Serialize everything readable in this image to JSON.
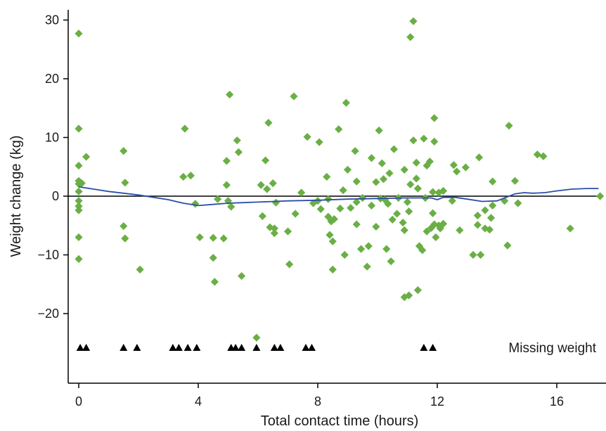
{
  "chart_data": {
    "type": "scatter",
    "title": "",
    "xlabel": "Total contact time (hours)",
    "ylabel": "Weight change (kg)",
    "xlim": [
      -0.3,
      17.6
    ],
    "ylim": [
      -32,
      32
    ],
    "x_ticks": [
      0,
      4,
      8,
      12,
      16
    ],
    "y_ticks": [
      -20,
      -10,
      0,
      10,
      20,
      30
    ],
    "grid": false,
    "reference_line_y": 0,
    "colors": {
      "points": "#6aaf45",
      "smooth": "#2a4fa8",
      "missing": "#000000",
      "axis": "#000000"
    },
    "annotation": "Missing weight",
    "series": [
      {
        "marker": "diamond",
        "points": [
          [
            0,
            27.7
          ],
          [
            0,
            11.5
          ],
          [
            0,
            5.2
          ],
          [
            0,
            2.6
          ],
          [
            0,
            2.1
          ],
          [
            0,
            0.8
          ],
          [
            0,
            -0.8
          ],
          [
            0,
            -1.7
          ],
          [
            0,
            -2.4
          ],
          [
            0,
            -7.0
          ],
          [
            0,
            -10.7
          ],
          [
            0.1,
            2.2
          ],
          [
            0.25,
            6.7
          ],
          [
            1.5,
            7.7
          ],
          [
            1.55,
            2.3
          ],
          [
            1.5,
            -5.1
          ],
          [
            1.55,
            -7.2
          ],
          [
            2.05,
            -12.5
          ],
          [
            3.5,
            3.3
          ],
          [
            3.55,
            11.5
          ],
          [
            3.75,
            3.5
          ],
          [
            3.9,
            -1.3
          ],
          [
            4.05,
            -7.0
          ],
          [
            4.5,
            -7.1
          ],
          [
            4.5,
            -10.5
          ],
          [
            4.55,
            -14.6
          ],
          [
            4.65,
            -0.5
          ],
          [
            4.85,
            -7.2
          ],
          [
            4.95,
            6.0
          ],
          [
            4.95,
            1.9
          ],
          [
            5.0,
            -0.8
          ],
          [
            5.05,
            17.3
          ],
          [
            5.1,
            -1.8
          ],
          [
            5.3,
            9.5
          ],
          [
            5.35,
            7.5
          ],
          [
            5.45,
            -13.6
          ],
          [
            5.95,
            -24.1
          ],
          [
            6.1,
            1.9
          ],
          [
            6.15,
            -3.4
          ],
          [
            6.25,
            6.1
          ],
          [
            6.3,
            1.2
          ],
          [
            6.35,
            12.5
          ],
          [
            6.4,
            -5.3
          ],
          [
            6.5,
            2.2
          ],
          [
            6.55,
            -5.5
          ],
          [
            6.6,
            -1.1
          ],
          [
            6.55,
            -6.3
          ],
          [
            7.0,
            -6.0
          ],
          [
            7.05,
            -11.6
          ],
          [
            7.2,
            17.0
          ],
          [
            7.25,
            -3.0
          ],
          [
            7.45,
            0.6
          ],
          [
            7.65,
            10.1
          ],
          [
            7.85,
            -1.2
          ],
          [
            8.0,
            -0.8
          ],
          [
            8.05,
            9.2
          ],
          [
            8.1,
            -2.2
          ],
          [
            8.3,
            3.3
          ],
          [
            8.35,
            -0.5
          ],
          [
            8.35,
            -3.5
          ],
          [
            8.4,
            -6.6
          ],
          [
            8.45,
            -4.3
          ],
          [
            8.5,
            -7.7
          ],
          [
            8.5,
            -12.5
          ],
          [
            8.55,
            -3.9
          ],
          [
            8.7,
            11.4
          ],
          [
            8.75,
            -2.1
          ],
          [
            8.85,
            1.0
          ],
          [
            8.9,
            -10.0
          ],
          [
            8.95,
            15.9
          ],
          [
            9.0,
            4.5
          ],
          [
            9.1,
            -2.0
          ],
          [
            9.25,
            7.7
          ],
          [
            9.3,
            2.5
          ],
          [
            9.3,
            -1.0
          ],
          [
            9.3,
            -4.8
          ],
          [
            9.45,
            -9.0
          ],
          [
            9.5,
            -0.3
          ],
          [
            9.65,
            -12.0
          ],
          [
            9.7,
            -8.5
          ],
          [
            9.8,
            6.5
          ],
          [
            9.8,
            -1.6
          ],
          [
            9.95,
            2.4
          ],
          [
            9.95,
            -5.2
          ],
          [
            10.05,
            11.2
          ],
          [
            10.1,
            -0.4
          ],
          [
            10.15,
            5.6
          ],
          [
            10.2,
            2.9
          ],
          [
            10.25,
            -0.6
          ],
          [
            10.3,
            -9.0
          ],
          [
            10.35,
            -1.3
          ],
          [
            10.4,
            3.9
          ],
          [
            10.45,
            -11.1
          ],
          [
            10.5,
            -4.0
          ],
          [
            10.55,
            8.0
          ],
          [
            10.65,
            -3.0
          ],
          [
            10.7,
            -0.3
          ],
          [
            10.85,
            -4.5
          ],
          [
            10.9,
            -5.8
          ],
          [
            10.9,
            4.5
          ],
          [
            10.9,
            -17.2
          ],
          [
            11.0,
            -1.0
          ],
          [
            11.05,
            -2.6
          ],
          [
            11.05,
            -16.9
          ],
          [
            11.1,
            2.0
          ],
          [
            11.1,
            27.1
          ],
          [
            11.2,
            29.8
          ],
          [
            11.2,
            9.5
          ],
          [
            11.3,
            5.7
          ],
          [
            11.3,
            3.0
          ],
          [
            11.35,
            1.3
          ],
          [
            11.35,
            -16.0
          ],
          [
            11.4,
            -8.5
          ],
          [
            11.5,
            -9.2
          ],
          [
            11.55,
            9.8
          ],
          [
            11.6,
            -0.3
          ],
          [
            11.65,
            5.2
          ],
          [
            11.65,
            -6.0
          ],
          [
            11.75,
            5.9
          ],
          [
            11.8,
            -5.4
          ],
          [
            11.85,
            0.7
          ],
          [
            11.85,
            -2.9
          ],
          [
            11.9,
            13.3
          ],
          [
            11.9,
            9.3
          ],
          [
            11.9,
            -4.8
          ],
          [
            11.95,
            -7.0
          ],
          [
            12.05,
            0.6
          ],
          [
            12.05,
            -5.0
          ],
          [
            12.1,
            -5.5
          ],
          [
            12.2,
            -4.7
          ],
          [
            12.2,
            0.9
          ],
          [
            12.5,
            -0.8
          ],
          [
            12.55,
            5.3
          ],
          [
            12.65,
            4.2
          ],
          [
            12.75,
            -5.8
          ],
          [
            12.95,
            4.9
          ],
          [
            13.2,
            -10.0
          ],
          [
            13.35,
            -3.3
          ],
          [
            13.35,
            -4.9
          ],
          [
            13.4,
            6.6
          ],
          [
            13.45,
            -10.0
          ],
          [
            13.6,
            -2.4
          ],
          [
            13.6,
            -5.5
          ],
          [
            13.75,
            -5.7
          ],
          [
            13.8,
            -3.7
          ],
          [
            13.85,
            2.5
          ],
          [
            13.85,
            -1.6
          ],
          [
            14.25,
            -0.8
          ],
          [
            14.35,
            -8.4
          ],
          [
            14.4,
            12.0
          ],
          [
            14.6,
            2.6
          ],
          [
            14.7,
            -1.2
          ],
          [
            15.35,
            7.1
          ],
          [
            15.55,
            6.8
          ],
          [
            16.45,
            -5.5
          ],
          [
            17.45,
            0
          ]
        ]
      }
    ],
    "smoothed_curve": [
      [
        0,
        1.6
      ],
      [
        0.5,
        1.2
      ],
      [
        1,
        0.8
      ],
      [
        1.5,
        0.5
      ],
      [
        2,
        0.2
      ],
      [
        2.5,
        -0.2
      ],
      [
        3,
        -0.6
      ],
      [
        3.5,
        -1.2
      ],
      [
        4,
        -1.6
      ],
      [
        4.5,
        -1.4
      ],
      [
        5,
        -1.2
      ],
      [
        5.5,
        -1.1
      ],
      [
        6,
        -1.0
      ],
      [
        7,
        -0.8
      ],
      [
        8,
        -0.7
      ],
      [
        9,
        -0.5
      ],
      [
        10,
        -0.4
      ],
      [
        11,
        -0.3
      ],
      [
        11.8,
        -0.3
      ],
      [
        12,
        -0.6
      ],
      [
        12.2,
        -0.2
      ],
      [
        12.6,
        -0.2
      ],
      [
        13,
        -0.5
      ],
      [
        13.5,
        -0.9
      ],
      [
        14,
        -0.8
      ],
      [
        14.3,
        -0.2
      ],
      [
        14.6,
        0.4
      ],
      [
        14.9,
        0.6
      ],
      [
        15.2,
        0.5
      ],
      [
        15.6,
        0.6
      ],
      [
        16,
        0.9
      ],
      [
        16.5,
        1.2
      ],
      [
        17.0,
        1.3
      ],
      [
        17.4,
        1.3
      ]
    ],
    "missing_weight_x": [
      0.05,
      0.25,
      1.5,
      1.95,
      3.15,
      3.35,
      3.65,
      3.95,
      5.1,
      5.25,
      5.45,
      5.95,
      6.55,
      6.75,
      7.6,
      7.8,
      11.55,
      11.85
    ]
  }
}
